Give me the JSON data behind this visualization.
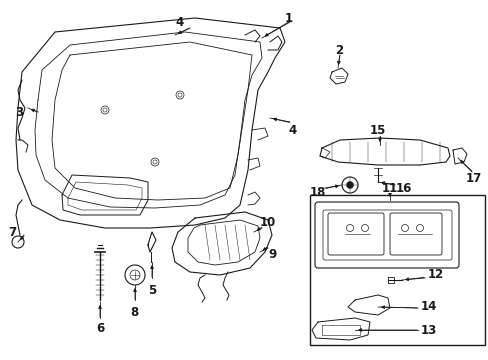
{
  "bg_color": "#ffffff",
  "line_color": "#1a1a1a",
  "label_fontsize": 8.5,
  "fig_width": 4.89,
  "fig_height": 3.6,
  "dpi": 100,
  "gray": "#888888",
  "darkgray": "#555555"
}
